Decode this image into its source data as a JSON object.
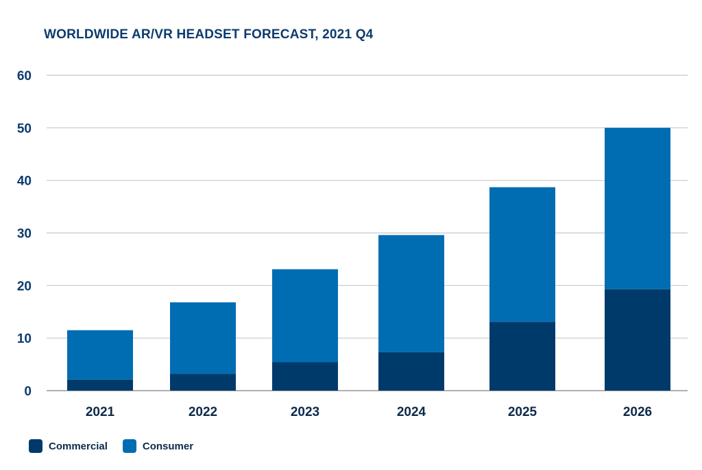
{
  "chart_data": {
    "type": "bar",
    "stacked": true,
    "title": "WORLDWIDE AR/VR HEADSET FORECAST, 2021 Q4",
    "xlabel": "",
    "ylabel": "",
    "categories": [
      "2021",
      "2022",
      "2023",
      "2024",
      "2025",
      "2026"
    ],
    "series": [
      {
        "name": "Commercial",
        "color": "#003a6b",
        "values": [
          2.1,
          3.2,
          5.4,
          7.3,
          13.1,
          19.3
        ]
      },
      {
        "name": "Consumer",
        "color": "#006db2",
        "values": [
          9.4,
          13.6,
          17.7,
          22.3,
          25.6,
          30.7
        ]
      }
    ],
    "ylim": [
      0,
      60
    ],
    "yticks": [
      0,
      10,
      20,
      30,
      40,
      50,
      60
    ],
    "grid": true,
    "legend_position": "bottom-left"
  }
}
